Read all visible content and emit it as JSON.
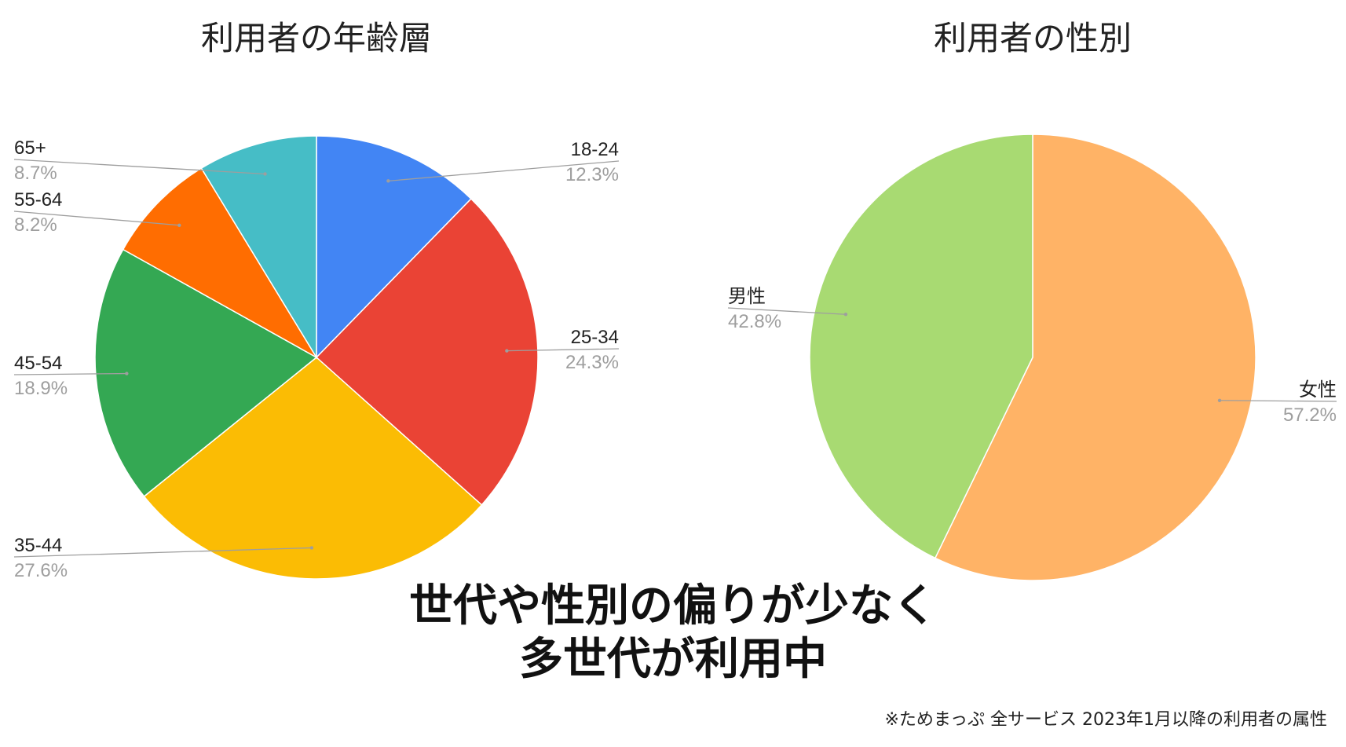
{
  "chart_data": [
    {
      "type": "pie",
      "title": "利用者の年齢層",
      "slices": [
        {
          "label": "18-24",
          "value": 12.3,
          "display": "12.3%",
          "color": "#4285F4"
        },
        {
          "label": "25-34",
          "value": 24.3,
          "display": "24.3%",
          "color": "#EA4335"
        },
        {
          "label": "35-44",
          "value": 27.6,
          "display": "27.6%",
          "color": "#FBBC04"
        },
        {
          "label": "45-54",
          "value": 18.9,
          "display": "18.9%",
          "color": "#34A853"
        },
        {
          "label": "55-64",
          "value": 8.2,
          "display": "8.2%",
          "color": "#FF6D01"
        },
        {
          "label": "65+",
          "value": 8.7,
          "display": "8.7%",
          "color": "#46BDC6"
        }
      ]
    },
    {
      "type": "pie",
      "title": "利用者の性別",
      "slices": [
        {
          "label": "女性",
          "value": 57.2,
          "display": "57.2%",
          "color": "#FFB366"
        },
        {
          "label": "男性",
          "value": 42.8,
          "display": "42.8%",
          "color": "#A8DA72"
        }
      ]
    }
  ],
  "headline": {
    "line1": "世代や性別の偏りが少なく",
    "line2": "多世代が利用中"
  },
  "footnote": "※ためまっぷ 全サービス 2023年1月以降の利用者の属性"
}
